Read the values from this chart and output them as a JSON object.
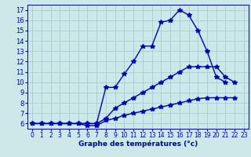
{
  "line1": {
    "x": [
      0,
      1,
      2,
      3,
      4,
      5,
      6,
      7,
      8,
      9,
      10,
      11,
      12,
      13,
      14,
      15,
      16,
      17,
      18,
      19,
      20,
      21
    ],
    "y": [
      6,
      6,
      6,
      6,
      6,
      6,
      6,
      6,
      9.5,
      9.5,
      10.8,
      12.0,
      13.5,
      13.5,
      15.8,
      16.0,
      17.0,
      16.5,
      15.0,
      13.0,
      10.5,
      10.0
    ]
  },
  "line2": {
    "x": [
      0,
      1,
      2,
      3,
      4,
      5,
      6,
      7,
      8,
      9,
      10,
      11,
      12,
      13,
      14,
      15,
      16,
      17,
      18,
      19,
      20,
      21,
      22
    ],
    "y": [
      6,
      6,
      6,
      6,
      6,
      6,
      6,
      6,
      6.5,
      7.5,
      8.0,
      8.5,
      9.0,
      9.5,
      10.0,
      10.5,
      11.0,
      11.5,
      11.5,
      11.5,
      11.5,
      10.5,
      10.0
    ]
  },
  "line3": {
    "x": [
      0,
      1,
      2,
      3,
      4,
      5,
      6,
      7,
      8,
      9,
      10,
      11,
      12,
      13,
      14,
      15,
      16,
      17,
      18,
      19,
      20,
      21,
      22
    ],
    "y": [
      6,
      6,
      6,
      6,
      6,
      6,
      5.8,
      5.8,
      6.3,
      6.5,
      6.8,
      7.0,
      7.2,
      7.4,
      7.6,
      7.8,
      8.0,
      8.2,
      8.4,
      8.5,
      8.5,
      8.5,
      8.5
    ]
  },
  "xlim": [
    -0.5,
    23.5
  ],
  "ylim": [
    5.5,
    17.5
  ],
  "yticks": [
    6,
    7,
    8,
    9,
    10,
    11,
    12,
    13,
    14,
    15,
    16,
    17
  ],
  "xticks": [
    0,
    1,
    2,
    3,
    4,
    5,
    6,
    7,
    8,
    9,
    10,
    11,
    12,
    13,
    14,
    15,
    16,
    17,
    18,
    19,
    20,
    21,
    22,
    23
  ],
  "xlabel": "Graphe des températures (°c)",
  "line_color": "#0000bb",
  "bg_color": "#cce8e8",
  "grid_color": "#aacccc",
  "marker": "*",
  "marker_size": 4,
  "line_width": 1.0,
  "tick_fontsize": 5.5,
  "xlabel_fontsize": 6.5
}
